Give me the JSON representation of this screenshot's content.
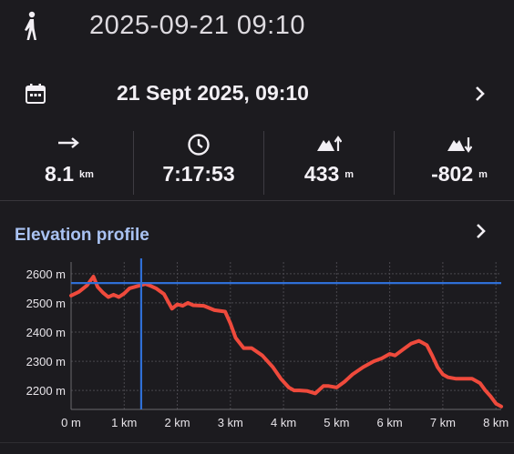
{
  "header": {
    "title": "2025-09-21 09:10",
    "activity_icon": "walking-person-icon"
  },
  "date_row": {
    "label": "21 Sept 2025, 09:10",
    "icon": "calendar-icon",
    "chevron": "chevron-right-icon"
  },
  "stats": [
    {
      "icon": "distance-arrow-icon",
      "value": "8.1",
      "unit": "km"
    },
    {
      "icon": "clock-icon",
      "value": "7:17:53",
      "unit": ""
    },
    {
      "icon": "ascent-icon",
      "value": "433",
      "unit": "m"
    },
    {
      "icon": "descent-icon",
      "value": "-802",
      "unit": "m"
    }
  ],
  "elevation": {
    "title": "Elevation profile",
    "chevron": "chevron-right-icon"
  },
  "colors": {
    "background": "#1c1b1f",
    "line": "#ef4a3c",
    "cursor": "#2f6fd6",
    "accent": "#a9c2f2"
  },
  "chart_data": {
    "type": "line",
    "title": "Elevation profile",
    "xlabel": "",
    "ylabel": "",
    "x_tick_labels": [
      "0 m",
      "1 km",
      "2 km",
      "3 km",
      "4 km",
      "5 km",
      "6 km",
      "7 km",
      "8 km"
    ],
    "y_tick_labels": [
      "2600 m",
      "2500 m",
      "2400 m",
      "2300 m",
      "2200 m"
    ],
    "x_ticks": [
      0,
      1,
      2,
      3,
      4,
      5,
      6,
      7,
      8
    ],
    "y_ticks": [
      2600,
      2500,
      2400,
      2300,
      2200
    ],
    "xlim": [
      0,
      8.1
    ],
    "ylim": [
      2135,
      2640
    ],
    "cursor": {
      "x": 1.32,
      "y": 2568
    },
    "series": [
      {
        "x": [
          0,
          0.15,
          0.3,
          0.42,
          0.5,
          0.6,
          0.7,
          0.8,
          0.9,
          1.0,
          1.1,
          1.2,
          1.3,
          1.4,
          1.5,
          1.6,
          1.75,
          1.9,
          2.0,
          2.1,
          2.2,
          2.3,
          2.5,
          2.7,
          2.9,
          3.0,
          3.1,
          3.25,
          3.4,
          3.6,
          3.8,
          3.95,
          4.1,
          4.2,
          4.3,
          4.45,
          4.6,
          4.75,
          4.85,
          5.0,
          5.15,
          5.3,
          5.5,
          5.7,
          5.85,
          6.0,
          6.1,
          6.25,
          6.4,
          6.55,
          6.7,
          6.8,
          6.9,
          7.0,
          7.1,
          7.25,
          7.4,
          7.55,
          7.7,
          7.8,
          7.9,
          8.0,
          8.1
        ],
        "y": [
          2525,
          2538,
          2560,
          2590,
          2555,
          2535,
          2520,
          2528,
          2520,
          2532,
          2550,
          2555,
          2560,
          2565,
          2558,
          2550,
          2530,
          2480,
          2495,
          2490,
          2500,
          2492,
          2490,
          2475,
          2470,
          2430,
          2380,
          2345,
          2345,
          2320,
          2280,
          2240,
          2210,
          2200,
          2200,
          2198,
          2190,
          2215,
          2215,
          2210,
          2230,
          2255,
          2280,
          2300,
          2310,
          2325,
          2320,
          2340,
          2360,
          2370,
          2355,
          2320,
          2280,
          2255,
          2245,
          2240,
          2240,
          2240,
          2225,
          2200,
          2180,
          2155,
          2145
        ]
      }
    ]
  }
}
